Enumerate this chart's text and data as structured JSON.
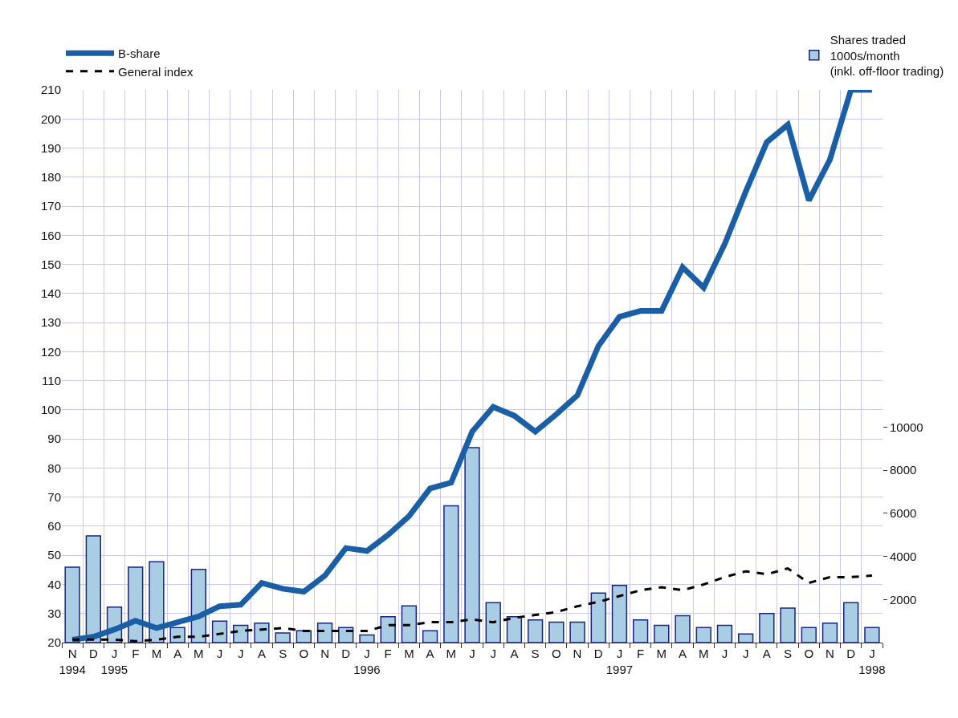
{
  "chart_data": {
    "type": "line",
    "categories": [
      "N\n1994",
      "D",
      "J\n1995",
      "F",
      "M",
      "A",
      "M",
      "J",
      "J",
      "A",
      "S",
      "O",
      "N",
      "D",
      "J\n1996",
      "F",
      "M",
      "A",
      "M",
      "J",
      "J",
      "A",
      "S",
      "O",
      "N",
      "D",
      "J\n1997",
      "F",
      "M",
      "A",
      "M",
      "J",
      "J",
      "A",
      "S",
      "O",
      "N",
      "D",
      "J\n1998"
    ],
    "series": [
      {
        "name": "Shares traded\n1000s/month\n(inkl. off-floor trading)",
        "type": "bar",
        "axis": "y2",
        "color": "#a9cde3",
        "values": [
          3500,
          4950,
          1650,
          3500,
          3750,
          700,
          3400,
          1000,
          800,
          900,
          450,
          550,
          900,
          700,
          350,
          1200,
          1700,
          550,
          6350,
          9050,
          1850,
          1200,
          1050,
          950,
          950,
          2300,
          2650,
          1050,
          800,
          1250,
          700,
          800,
          400,
          1350,
          1600,
          700,
          900,
          1850,
          700
        ]
      },
      {
        "name": "B-share",
        "color": "#1a5ea6",
        "line_style": "solid",
        "values": [
          21,
          22,
          24.5,
          27.5,
          25,
          27,
          29,
          32.5,
          33,
          40.5,
          38.5,
          37.5,
          43,
          52.5,
          51.5,
          57,
          63.5,
          73,
          75,
          92.5,
          101,
          98,
          92.5,
          98.5,
          105,
          122,
          132,
          134,
          134,
          149,
          142,
          157,
          175,
          192,
          198,
          172,
          186,
          210,
          210
        ]
      },
      {
        "name": "General index",
        "color": "#000000",
        "line_style": "dashed",
        "values": [
          21,
          21,
          21,
          20.5,
          21,
          22,
          22,
          23,
          24,
          24.5,
          25,
          24,
          24,
          24,
          24,
          26,
          26,
          27,
          27,
          28,
          27,
          28.5,
          29.5,
          30.5,
          32.5,
          34,
          36,
          38,
          39,
          38,
          40,
          42.5,
          44.5,
          43.5,
          45.5,
          40.5,
          42.5,
          42.5,
          43
        ]
      }
    ],
    "ylim": [
      20,
      210
    ],
    "yticks": [
      20,
      30,
      40,
      50,
      60,
      70,
      80,
      90,
      100,
      110,
      120,
      130,
      140,
      150,
      160,
      170,
      180,
      190,
      200,
      210
    ],
    "y2lim": [
      0,
      25660
    ],
    "y2ticks": [
      2000,
      4000,
      6000,
      8000,
      10000
    ],
    "grid": true,
    "legend": "top",
    "marker": "none"
  }
}
